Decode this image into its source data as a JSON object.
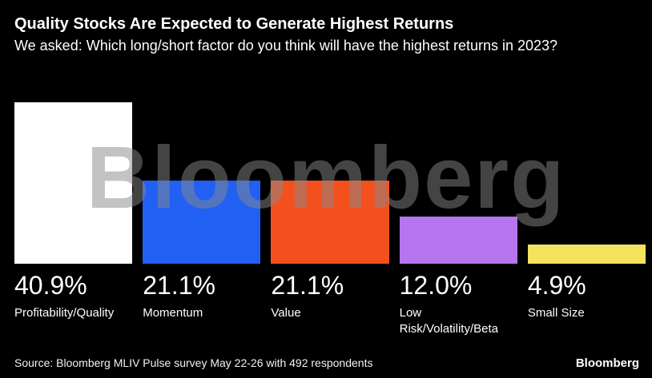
{
  "header": {
    "title": "Quality Stocks Are Expected to Generate Highest Returns",
    "subtitle": "We asked: Which long/short factor do you think will have the highest returns in 2023?"
  },
  "chart_data": {
    "type": "bar",
    "categories": [
      "Profitability/Quality",
      "Momentum",
      "Value",
      "Low Risk/Volatility/Beta",
      "Small Size"
    ],
    "values": [
      40.9,
      21.1,
      21.1,
      12.0,
      4.9
    ],
    "value_labels": [
      "40.9%",
      "21.1%",
      "21.1%",
      "12.0%",
      "4.9%"
    ],
    "bar_colors": [
      "#ffffff",
      "#2160f3",
      "#f4501e",
      "#b575ee",
      "#f3e35f"
    ],
    "title": "Quality Stocks Are Expected to Generate Highest Returns",
    "xlabel": "",
    "ylabel": "",
    "ylim": [
      0,
      45
    ],
    "grid": false,
    "legend": false,
    "watermark": "Bloomberg",
    "background_color": "#000000",
    "text_color": "#ffffff"
  },
  "footer": {
    "source": "Source: Bloomberg MLIV Pulse survey May 22-26 with 492 respondents",
    "brand": "Bloomberg"
  }
}
